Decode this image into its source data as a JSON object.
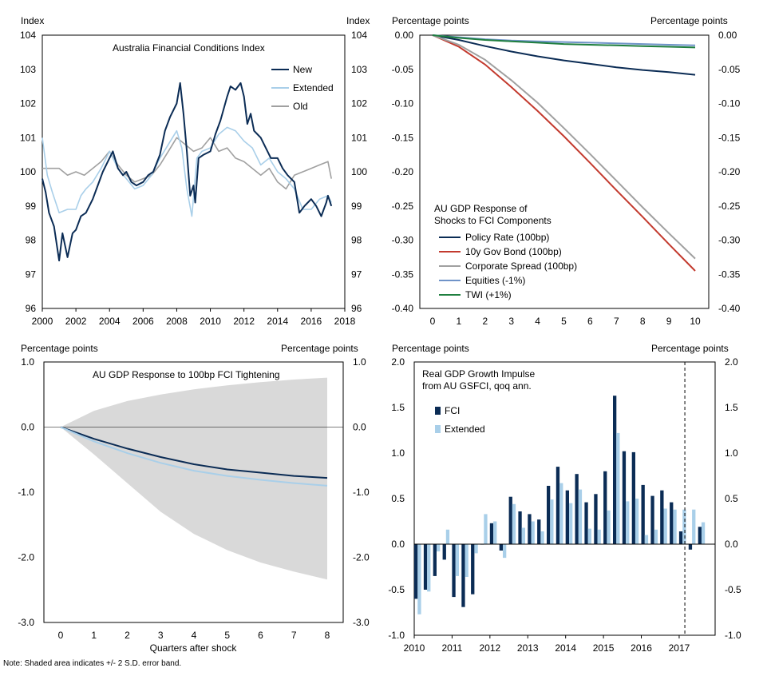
{
  "note": "Note: Shaded area indicates +/- 2 S.D. error band.",
  "colors": {
    "navy": "#0b2c55",
    "lightblue": "#a9cfe9",
    "grey": "#a0a0a0",
    "red": "#c33a2e",
    "medblue": "#6f93c8",
    "green": "#1f7f3f",
    "band": "#d9d9d9"
  },
  "chart_data": [
    {
      "id": "fci",
      "type": "line",
      "title": "Australia Financial Conditions Index",
      "ylabel_left": "Index",
      "ylabel_right": "Index",
      "ylim": [
        96,
        104
      ],
      "yticks": [
        "96",
        "97",
        "98",
        "99",
        "100",
        "101",
        "102",
        "103",
        "104"
      ],
      "xlim": [
        2000,
        2018
      ],
      "xticks": [
        "2000",
        "2002",
        "2004",
        "2006",
        "2008",
        "2010",
        "2012",
        "2014",
        "2016",
        "2018"
      ],
      "series": [
        {
          "name": "Old",
          "color": "grey",
          "x": [
            2000,
            2000.5,
            2001,
            2001.5,
            2002,
            2002.5,
            2003,
            2003.5,
            2004,
            2004.5,
            2005,
            2005.5,
            2006,
            2006.5,
            2007,
            2007.5,
            2008,
            2008.5,
            2009,
            2009.5,
            2010,
            2010.5,
            2011,
            2011.5,
            2012,
            2012.5,
            2013,
            2013.5,
            2014,
            2014.5,
            2015,
            2015.5,
            2016,
            2016.5,
            2017,
            2017.2
          ],
          "y": [
            100.1,
            100.1,
            100.1,
            99.9,
            100,
            99.9,
            100.1,
            100.3,
            100.6,
            100.2,
            99.9,
            99.7,
            99.8,
            99.9,
            100.2,
            100.6,
            101,
            100.8,
            100.6,
            100.7,
            101,
            100.6,
            100.7,
            100.4,
            100.3,
            100.1,
            99.9,
            100.1,
            99.7,
            99.5,
            99.9,
            100,
            100.1,
            100.2,
            100.3,
            99.8
          ]
        },
        {
          "name": "Extended",
          "color": "lightblue",
          "x": [
            2000,
            2000.3,
            2000.6,
            2001,
            2001.5,
            2002,
            2002.3,
            2002.6,
            2003,
            2003.5,
            2004,
            2004.5,
            2005,
            2005.5,
            2006,
            2006.5,
            2007,
            2007.5,
            2008,
            2008.3,
            2008.6,
            2008.9,
            2009.2,
            2009.5,
            2010,
            2010.5,
            2011,
            2011.5,
            2012,
            2012.5,
            2013,
            2013.5,
            2014,
            2014.5,
            2015,
            2015.5,
            2016,
            2016.5,
            2017,
            2017.2
          ],
          "y": [
            101,
            99.9,
            99.4,
            98.8,
            98.9,
            98.9,
            99.3,
            99.5,
            99.7,
            100.1,
            100.6,
            100.1,
            99.8,
            99.5,
            99.6,
            99.9,
            100.4,
            100.8,
            101.2,
            100.7,
            99.5,
            98.7,
            100.4,
            100.6,
            100.7,
            101.1,
            101.3,
            101.2,
            100.9,
            100.7,
            100.2,
            100.4,
            100,
            99.8,
            99.5,
            98.9,
            98.9,
            99.2,
            99.3,
            99.1
          ]
        },
        {
          "name": "New",
          "color": "navy",
          "x": [
            2000,
            2000.2,
            2000.4,
            2000.7,
            2001,
            2001.2,
            2001.5,
            2001.8,
            2002,
            2002.3,
            2002.6,
            2003,
            2003.3,
            2003.6,
            2004,
            2004.2,
            2004.5,
            2004.8,
            2005,
            2005.3,
            2005.6,
            2006,
            2006.3,
            2006.6,
            2007,
            2007.3,
            2007.6,
            2008,
            2008.2,
            2008.4,
            2008.6,
            2008.8,
            2009,
            2009.1,
            2009.3,
            2009.6,
            2010,
            2010.3,
            2010.6,
            2011,
            2011.2,
            2011.5,
            2011.8,
            2012,
            2012.2,
            2012.4,
            2012.6,
            2012.8,
            2013,
            2013.3,
            2013.6,
            2014,
            2014.3,
            2014.6,
            2015,
            2015.3,
            2015.6,
            2016,
            2016.3,
            2016.6,
            2016.9,
            2017,
            2017.2
          ],
          "y": [
            99.8,
            99.4,
            98.8,
            98.4,
            97.4,
            98.2,
            97.5,
            98.2,
            98.3,
            98.7,
            98.8,
            99.2,
            99.6,
            100,
            100.4,
            100.6,
            100.1,
            99.9,
            100,
            99.7,
            99.6,
            99.7,
            99.9,
            100,
            100.5,
            101.2,
            101.6,
            102,
            102.6,
            101.7,
            100.6,
            99.3,
            99.6,
            99.1,
            100.4,
            100.5,
            100.6,
            101.1,
            101.5,
            102.2,
            102.5,
            102.4,
            102.6,
            102.2,
            101.4,
            101.7,
            101.2,
            101.1,
            101,
            100.7,
            100.4,
            100.4,
            100.1,
            99.9,
            99.7,
            98.8,
            99,
            99.2,
            99,
            98.7,
            99.1,
            99.3,
            99
          ]
        }
      ]
    },
    {
      "id": "components",
      "type": "line",
      "title": "AU GDP Response of",
      "subtitle": "Shocks to FCI Components",
      "ylabel_left": "Percentage points",
      "ylabel_right": "Percentage points",
      "ylim": [
        -0.4,
        0
      ],
      "yticks": [
        "-0.40",
        "-0.35",
        "-0.30",
        "-0.25",
        "-0.20",
        "-0.15",
        "-0.10",
        "-0.05",
        "0.00"
      ],
      "xticks": [
        "0",
        "1",
        "2",
        "3",
        "4",
        "5",
        "6",
        "7",
        "8",
        "9",
        "10"
      ],
      "x": [
        0,
        1,
        2,
        3,
        4,
        5,
        6,
        7,
        8,
        9,
        10
      ],
      "series": [
        {
          "name": "Policy Rate (100bp)",
          "color": "navy",
          "values": [
            0,
            -0.007,
            -0.016,
            -0.024,
            -0.031,
            -0.037,
            -0.042,
            -0.047,
            -0.051,
            -0.054,
            -0.058
          ]
        },
        {
          "name": "10y Gov Bond (100bp)",
          "color": "red",
          "values": [
            0,
            -0.017,
            -0.043,
            -0.076,
            -0.111,
            -0.148,
            -0.187,
            -0.227,
            -0.266,
            -0.306,
            -0.345
          ]
        },
        {
          "name": "Corporate Spread (100bp)",
          "color": "grey",
          "values": [
            0,
            -0.014,
            -0.036,
            -0.066,
            -0.099,
            -0.136,
            -0.174,
            -0.213,
            -0.252,
            -0.29,
            -0.327
          ]
        },
        {
          "name": "Equities (-1%)",
          "color": "medblue",
          "values": [
            0,
            -0.003,
            -0.006,
            -0.008,
            -0.009,
            -0.01,
            -0.011,
            -0.012,
            -0.013,
            -0.014,
            -0.015
          ]
        },
        {
          "name": "TWI (+1%)",
          "color": "green",
          "values": [
            0,
            -0.004,
            -0.007,
            -0.009,
            -0.011,
            -0.013,
            -0.014,
            -0.015,
            -0.016,
            -0.017,
            -0.018
          ]
        }
      ]
    },
    {
      "id": "tightening",
      "type": "area",
      "title": "AU GDP Response to 100bp FCI Tightening",
      "ylabel_left": "Percentage points",
      "ylabel_right": "Percentage points",
      "xlabel": "Quarters after shock",
      "ylim": [
        -3,
        1
      ],
      "yticks": [
        "-3.0",
        "-2.0",
        "-1.0",
        "0.0",
        "1.0"
      ],
      "xticks": [
        "0",
        "1",
        "2",
        "3",
        "4",
        "5",
        "6",
        "7",
        "8"
      ],
      "x": [
        0,
        1,
        2,
        3,
        4,
        5,
        6,
        7,
        8
      ],
      "band_upper": [
        0,
        0.25,
        0.4,
        0.5,
        0.58,
        0.64,
        0.69,
        0.73,
        0.76
      ],
      "band_lower": [
        0,
        -0.42,
        -0.86,
        -1.3,
        -1.64,
        -1.89,
        -2.08,
        -2.22,
        -2.34
      ],
      "series": [
        {
          "name": "FCI",
          "color": "navy",
          "values": [
            0,
            -0.18,
            -0.33,
            -0.46,
            -0.57,
            -0.65,
            -0.7,
            -0.75,
            -0.78
          ]
        },
        {
          "name": "Extended",
          "color": "lightblue",
          "values": [
            0,
            -0.22,
            -0.4,
            -0.55,
            -0.67,
            -0.75,
            -0.81,
            -0.86,
            -0.9
          ]
        }
      ]
    },
    {
      "id": "impulse",
      "type": "bar",
      "title": "Real GDP Growth Impulse",
      "subtitle": "from AU GSFCI, qoq ann.",
      "ylabel_left": "Percentage points",
      "ylabel_right": "Percentage points",
      "ylim": [
        -1,
        2
      ],
      "yticks": [
        "-1.0",
        "-0.5",
        "0.0",
        "0.5",
        "1.0",
        "1.5",
        "2.0"
      ],
      "xticks": [
        "2010",
        "2011",
        "2012",
        "2013",
        "2014",
        "2015",
        "2016",
        "2017"
      ],
      "xlim": [
        2010,
        2017.95
      ],
      "vline_at": 2017.15,
      "bar_start": 2010.0,
      "series": [
        {
          "name": "FCI",
          "color": "navy",
          "values": [
            -0.6,
            -0.5,
            -0.35,
            -0.17,
            -0.58,
            -0.69,
            -0.55,
            0,
            0.23,
            -0.07,
            0.52,
            0.36,
            0.33,
            0.27,
            0.64,
            0.85,
            0.59,
            0.77,
            0.46,
            0.55,
            0.8,
            1.63,
            1.02,
            1.01,
            0.65,
            0.53,
            0.59,
            0.46,
            0.14,
            -0.06,
            0.19
          ]
        },
        {
          "name": "Extended",
          "color": "lightblue",
          "values": [
            -0.77,
            -0.52,
            -0.08,
            0.16,
            -0.35,
            -0.36,
            -0.1,
            0.33,
            0.25,
            -0.15,
            0.44,
            0.18,
            0.25,
            0.14,
            0.49,
            0.67,
            0.45,
            0.6,
            0.17,
            0.16,
            0.37,
            1.22,
            0.47,
            0.5,
            0.1,
            0.16,
            0.39,
            0.38,
            0.38,
            0.38,
            0.24
          ]
        }
      ]
    }
  ]
}
